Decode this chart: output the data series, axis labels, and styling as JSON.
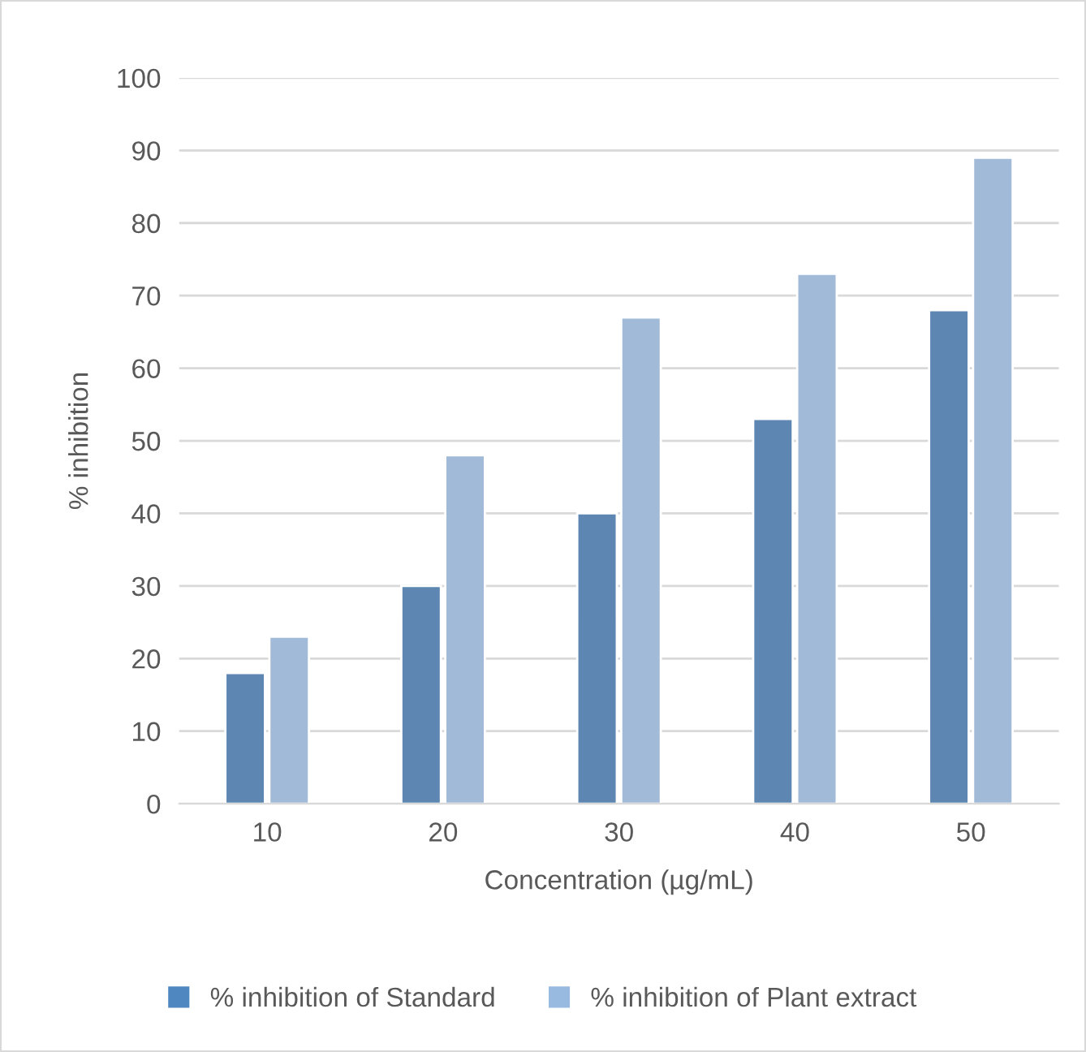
{
  "chart_data": {
    "type": "bar",
    "xlabel": "Concentration (µg/mL)",
    "ylabel": "% inhibition",
    "categories": [
      "10",
      "20",
      "30",
      "40",
      "50"
    ],
    "series": [
      {
        "name": "% inhibition of Standard",
        "color": "#4f87c0",
        "values": [
          18,
          30,
          40,
          53,
          68
        ]
      },
      {
        "name": "% inhibition of Plant extract",
        "color": "#98b9e0",
        "values": [
          23,
          48,
          67,
          73,
          89
        ]
      }
    ],
    "ylim": [
      0,
      100
    ],
    "yticks": [
      0,
      10,
      20,
      30,
      40,
      50,
      60,
      70,
      80,
      90,
      100
    ],
    "grid": "y",
    "legend": "bottom"
  }
}
